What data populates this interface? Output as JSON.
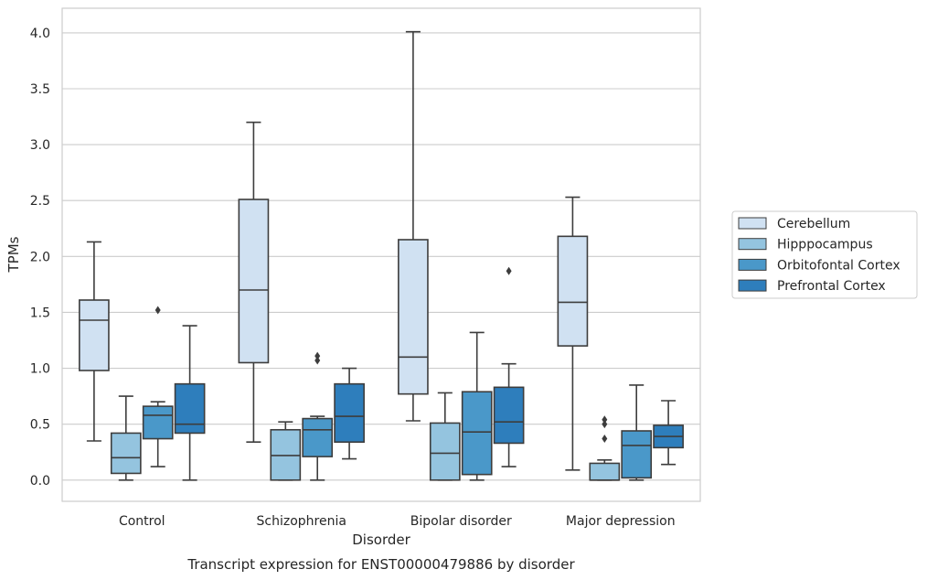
{
  "chart_data": {
    "type": "box",
    "title": "Transcript expression for ENST00000479886 by disorder",
    "xlabel": "Disorder",
    "ylabel": "TPMs",
    "ylim": [
      -0.19,
      4.22
    ],
    "yticks": [
      "0.0",
      "0.5",
      "1.0",
      "1.5",
      "2.0",
      "2.5",
      "3.0",
      "3.5",
      "4.0"
    ],
    "categories": [
      "Control",
      "Schizophrenia",
      "Bipolar disorder",
      "Major depression"
    ],
    "grid": "horizontal",
    "legend_position": "right",
    "series": [
      {
        "name": "Cerebellum",
        "color": "#d0e1f2",
        "boxes": [
          {
            "whislo": 0.35,
            "q1": 0.98,
            "med": 1.43,
            "q3": 1.61,
            "whishi": 2.13,
            "fliers": []
          },
          {
            "whislo": 0.34,
            "q1": 1.05,
            "med": 1.7,
            "q3": 2.51,
            "whishi": 3.2,
            "fliers": []
          },
          {
            "whislo": 0.53,
            "q1": 0.77,
            "med": 1.1,
            "q3": 2.15,
            "whishi": 4.01,
            "fliers": []
          },
          {
            "whislo": 0.09,
            "q1": 1.2,
            "med": 1.59,
            "q3": 2.18,
            "whishi": 2.53,
            "fliers": []
          }
        ]
      },
      {
        "name": "Hipppocampus",
        "color": "#94c4df",
        "boxes": [
          {
            "whislo": 0.0,
            "q1": 0.06,
            "med": 0.2,
            "q3": 0.42,
            "whishi": 0.75,
            "fliers": []
          },
          {
            "whislo": 0.0,
            "q1": 0.0,
            "med": 0.22,
            "q3": 0.45,
            "whishi": 0.52,
            "fliers": []
          },
          {
            "whislo": 0.0,
            "q1": 0.0,
            "med": 0.24,
            "q3": 0.51,
            "whishi": 0.78,
            "fliers": []
          },
          {
            "whislo": 0.0,
            "q1": 0.0,
            "med": 0.0,
            "q3": 0.15,
            "whishi": 0.18,
            "fliers": [
              0.37,
              0.5,
              0.54
            ]
          }
        ]
      },
      {
        "name": "Orbitofontal Cortex",
        "color": "#4a98c9",
        "boxes": [
          {
            "whislo": 0.12,
            "q1": 0.37,
            "med": 0.58,
            "q3": 0.66,
            "whishi": 0.7,
            "fliers": [
              1.52
            ]
          },
          {
            "whislo": 0.0,
            "q1": 0.21,
            "med": 0.45,
            "q3": 0.55,
            "whishi": 0.57,
            "fliers": [
              1.07,
              1.11
            ]
          },
          {
            "whislo": 0.0,
            "q1": 0.05,
            "med": 0.43,
            "q3": 0.79,
            "whishi": 1.32,
            "fliers": []
          },
          {
            "whislo": 0.0,
            "q1": 0.02,
            "med": 0.31,
            "q3": 0.44,
            "whishi": 0.85,
            "fliers": []
          }
        ]
      },
      {
        "name": "Prefrontal Cortex",
        "color": "#2e7ebc",
        "boxes": [
          {
            "whislo": 0.0,
            "q1": 0.42,
            "med": 0.5,
            "q3": 0.86,
            "whishi": 1.38,
            "fliers": []
          },
          {
            "whislo": 0.19,
            "q1": 0.34,
            "med": 0.57,
            "q3": 0.86,
            "whishi": 1.0,
            "fliers": []
          },
          {
            "whislo": 0.12,
            "q1": 0.33,
            "med": 0.52,
            "q3": 0.83,
            "whishi": 1.04,
            "fliers": [
              1.87
            ]
          },
          {
            "whislo": 0.14,
            "q1": 0.29,
            "med": 0.39,
            "q3": 0.49,
            "whishi": 0.71,
            "fliers": []
          }
        ]
      }
    ]
  }
}
